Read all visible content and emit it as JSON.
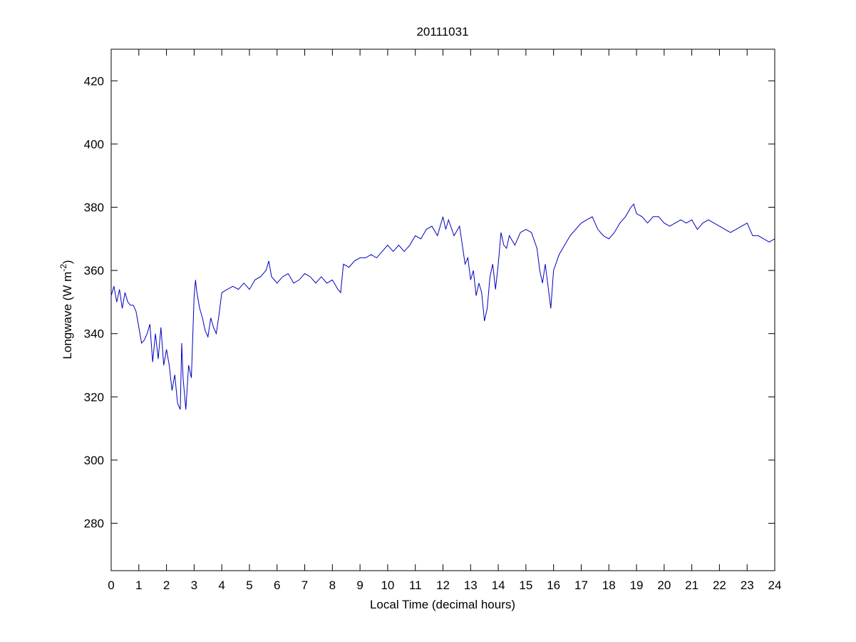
{
  "chart_data": {
    "type": "line",
    "title": "20111031",
    "xlabel": "Local Time (decimal hours)",
    "ylabel": {
      "text": "Longwave (W m",
      "sup": "-2",
      "close": ")"
    },
    "xlim": [
      0,
      24
    ],
    "xticks": [
      0,
      1,
      2,
      3,
      4,
      5,
      6,
      7,
      8,
      9,
      10,
      11,
      12,
      13,
      14,
      15,
      16,
      17,
      18,
      19,
      20,
      21,
      22,
      23,
      24
    ],
    "ylim": [
      265,
      430
    ],
    "yticks": [
      280,
      300,
      320,
      340,
      360,
      380,
      400,
      420
    ],
    "grid": false,
    "x": [
      0,
      0.1,
      0.2,
      0.3,
      0.4,
      0.5,
      0.6,
      0.7,
      0.8,
      0.9,
      1.0,
      1.1,
      1.2,
      1.3,
      1.4,
      1.5,
      1.6,
      1.7,
      1.8,
      1.9,
      2.0,
      2.1,
      2.2,
      2.3,
      2.4,
      2.5,
      2.55,
      2.6,
      2.7,
      2.8,
      2.9,
      3.0,
      3.05,
      3.1,
      3.2,
      3.3,
      3.4,
      3.5,
      3.6,
      3.7,
      3.8,
      3.9,
      4.0,
      4.2,
      4.4,
      4.6,
      4.8,
      5.0,
      5.2,
      5.4,
      5.6,
      5.7,
      5.8,
      6.0,
      6.2,
      6.4,
      6.6,
      6.8,
      7.0,
      7.2,
      7.4,
      7.6,
      7.8,
      8.0,
      8.2,
      8.3,
      8.4,
      8.6,
      8.8,
      9.0,
      9.2,
      9.4,
      9.6,
      9.8,
      10.0,
      10.2,
      10.4,
      10.6,
      10.8,
      11.0,
      11.2,
      11.4,
      11.6,
      11.8,
      12.0,
      12.1,
      12.2,
      12.4,
      12.6,
      12.7,
      12.8,
      12.9,
      13.0,
      13.1,
      13.2,
      13.3,
      13.4,
      13.5,
      13.6,
      13.7,
      13.8,
      13.9,
      14.0,
      14.1,
      14.2,
      14.3,
      14.4,
      14.6,
      14.8,
      15.0,
      15.2,
      15.4,
      15.5,
      15.6,
      15.7,
      15.8,
      15.9,
      16.0,
      16.2,
      16.4,
      16.6,
      16.8,
      17.0,
      17.2,
      17.4,
      17.6,
      17.8,
      18.0,
      18.2,
      18.4,
      18.6,
      18.8,
      18.9,
      19.0,
      19.2,
      19.4,
      19.6,
      19.8,
      20.0,
      20.2,
      20.4,
      20.6,
      20.8,
      21.0,
      21.2,
      21.4,
      21.6,
      21.8,
      22.0,
      22.2,
      22.4,
      22.6,
      22.8,
      23.0,
      23.2,
      23.4,
      23.6,
      23.8,
      24.0
    ],
    "series": [
      {
        "color": "#0000bf",
        "values": [
          352,
          355,
          350,
          354,
          348,
          353,
          350,
          349,
          349,
          347,
          342,
          337,
          338,
          340,
          343,
          331,
          340,
          332,
          342,
          330,
          335,
          330,
          322,
          327,
          318,
          316,
          337,
          326,
          316,
          330,
          326,
          352,
          357,
          353,
          348,
          345,
          341,
          339,
          345,
          342,
          340,
          346,
          353,
          354,
          355,
          354,
          356,
          354,
          357,
          358,
          360,
          363,
          358,
          356,
          358,
          359,
          356,
          357,
          359,
          358,
          356,
          358,
          356,
          357,
          354,
          353,
          362,
          361,
          363,
          364,
          364,
          365,
          364,
          366,
          368,
          366,
          368,
          366,
          368,
          371,
          370,
          373,
          374,
          371,
          377,
          373,
          376,
          371,
          374,
          368,
          362,
          364,
          357,
          360,
          352,
          356,
          353,
          344,
          348,
          358,
          362,
          354,
          362,
          372,
          368,
          367,
          371,
          368,
          372,
          373,
          372,
          367,
          360,
          356,
          362,
          355,
          348,
          360,
          365,
          368,
          371,
          373,
          375,
          376,
          377,
          373,
          371,
          370,
          372,
          375,
          377,
          380,
          381,
          378,
          377,
          375,
          377,
          377,
          375,
          374,
          375,
          376,
          375,
          376,
          373,
          375,
          376,
          375,
          374,
          373,
          372,
          373,
          374,
          375,
          371,
          371,
          370,
          369,
          370
        ]
      }
    ]
  }
}
